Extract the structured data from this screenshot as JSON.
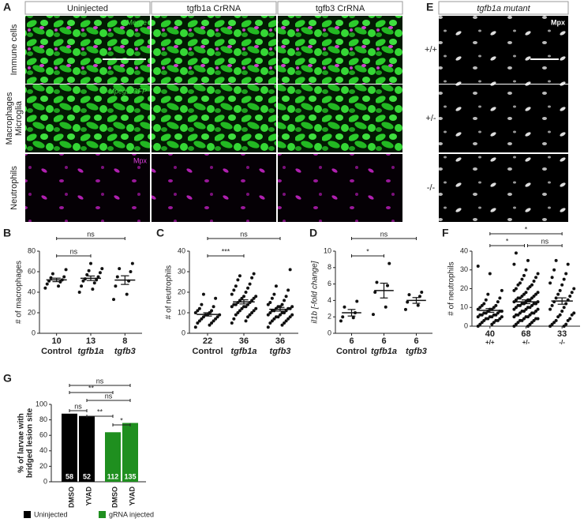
{
  "panel_A": {
    "label": "A",
    "columns": [
      "Uninjected",
      "tgfb1a CrRNA",
      "tgfb3 CrRNA"
    ],
    "rows": [
      [
        "Immune cells"
      ],
      [
        "Macrophages",
        "Microglia"
      ],
      [
        "Neutrophils"
      ]
    ],
    "channels": [
      "Merge",
      "Mpeg1:GFP",
      "Mpx"
    ]
  },
  "panel_E": {
    "label": "E",
    "title": "tgfb1a mutant",
    "rows": [
      "+/+",
      "+/-",
      "-/-"
    ],
    "channel": "Mpx"
  },
  "chart_data": [
    {
      "type": "dotplot",
      "label": "B",
      "ylabel": "# of macrophages",
      "categories": [
        "Control",
        "tgfb1a",
        "tgfb3"
      ],
      "n": [
        10,
        13,
        8
      ],
      "points": [
        [
          44,
          46,
          48,
          50,
          51,
          52,
          54,
          55,
          58,
          62
        ],
        [
          40,
          43,
          46,
          49,
          51,
          52,
          53,
          55,
          57,
          59,
          61,
          63,
          68
        ],
        [
          33,
          38,
          46,
          51,
          55,
          60,
          63,
          68
        ]
      ],
      "mean": [
        52.0,
        53.6,
        51.8
      ],
      "sem": [
        1.7,
        2.2,
        4.2
      ],
      "ylim": [
        0,
        80
      ],
      "yticks": [
        0,
        20,
        40,
        60,
        80
      ],
      "comparisons": [
        {
          "from": 0,
          "to": 2,
          "label": "ns"
        },
        {
          "from": 0,
          "to": 1,
          "label": "ns"
        }
      ]
    },
    {
      "type": "dotplot",
      "label": "C",
      "ylabel": "# of neutrophils",
      "categories": [
        "Control",
        "tgfb1a",
        "tgfb3"
      ],
      "n": [
        22,
        36,
        36
      ],
      "points": [
        [
          3,
          4,
          5,
          5,
          6,
          6,
          7,
          7,
          8,
          8,
          9,
          9,
          9,
          10,
          10,
          11,
          11,
          12,
          13,
          14,
          17,
          19
        ],
        [
          5,
          6,
          7,
          8,
          9,
          9,
          10,
          10,
          11,
          11,
          12,
          12,
          13,
          13,
          13,
          14,
          14,
          14,
          15,
          15,
          16,
          16,
          17,
          17,
          18,
          18,
          19,
          20,
          21,
          22,
          23,
          24,
          26,
          27,
          28,
          29
        ],
        [
          3,
          4,
          5,
          5,
          6,
          6,
          7,
          7,
          8,
          8,
          8,
          9,
          9,
          9,
          10,
          10,
          10,
          11,
          11,
          11,
          12,
          12,
          12,
          13,
          13,
          13,
          14,
          14,
          15,
          16,
          17,
          18,
          19,
          21,
          23,
          31
        ]
      ],
      "mean": [
        9.2,
        15.3,
        11.7
      ],
      "sem": [
        0.8,
        1.0,
        0.9
      ],
      "ylim": [
        0,
        40
      ],
      "yticks": [
        0,
        10,
        20,
        30,
        40
      ],
      "comparisons": [
        {
          "from": 0,
          "to": 2,
          "label": "ns"
        },
        {
          "from": 0,
          "to": 1,
          "label": "***"
        }
      ]
    },
    {
      "type": "dotplot",
      "label": "D",
      "ylabel": "il1b [-fold change]",
      "categories": [
        "Control",
        "tgfb1a",
        "tgfb3"
      ],
      "n": [
        6,
        6,
        6
      ],
      "points": [
        [
          1.5,
          1.9,
          2.0,
          2.5,
          3.2,
          3.9
        ],
        [
          2.3,
          3.2,
          5.0,
          5.8,
          6.2,
          8.5
        ],
        [
          2.9,
          3.4,
          3.8,
          4.5,
          4.7,
          5.0
        ]
      ],
      "mean": [
        2.5,
        5.2,
        4.0
      ],
      "sem": [
        0.4,
        0.9,
        0.35
      ],
      "ylim": [
        0,
        10
      ],
      "yticks": [
        0,
        2,
        4,
        6,
        8,
        10
      ],
      "comparisons": [
        {
          "from": 0,
          "to": 2,
          "label": "ns"
        },
        {
          "from": 0,
          "to": 1,
          "label": "*"
        }
      ]
    },
    {
      "type": "dotplot",
      "label": "F",
      "ylabel": "# of neutrophils",
      "categories": [
        "+/+",
        "+/-",
        "-/-"
      ],
      "n": [
        40,
        68,
        33
      ],
      "points": [
        [
          0,
          1,
          1,
          2,
          2,
          3,
          3,
          3,
          4,
          4,
          4,
          5,
          5,
          5,
          5,
          6,
          6,
          6,
          6,
          7,
          7,
          7,
          8,
          8,
          8,
          9,
          9,
          9,
          10,
          10,
          11,
          11,
          12,
          13,
          14,
          15,
          17,
          19,
          28,
          32
        ],
        [
          0,
          0,
          1,
          1,
          2,
          2,
          3,
          3,
          3,
          4,
          4,
          4,
          5,
          5,
          5,
          6,
          6,
          6,
          7,
          7,
          7,
          8,
          8,
          8,
          9,
          9,
          9,
          10,
          10,
          10,
          11,
          11,
          11,
          12,
          12,
          12,
          12,
          13,
          13,
          13,
          14,
          14,
          14,
          15,
          15,
          15,
          16,
          16,
          17,
          17,
          18,
          18,
          19,
          20,
          20,
          21,
          22,
          22,
          23,
          24,
          25,
          26,
          27,
          28,
          30,
          33,
          35,
          39
        ],
        [
          0,
          0,
          1,
          1,
          2,
          3,
          3,
          4,
          5,
          6,
          6,
          7,
          8,
          9,
          10,
          11,
          12,
          13,
          14,
          15,
          16,
          17,
          18,
          19,
          20,
          22,
          23,
          25,
          26,
          28,
          30,
          33,
          35
        ]
      ],
      "mean": [
        8.4,
        13.0,
        13.4
      ],
      "sem": [
        1.0,
        1.0,
        1.7
      ],
      "ylim": [
        0,
        40
      ],
      "yticks": [
        0,
        10,
        20,
        30,
        40
      ],
      "comparisons": [
        {
          "from": 0,
          "to": 2,
          "label": "*"
        },
        {
          "from": 0,
          "to": 1,
          "label": "*"
        },
        {
          "from": 1,
          "to": 2,
          "label": "ns"
        }
      ]
    },
    {
      "type": "bar",
      "label": "G",
      "ylabel": [
        "% of larvae with",
        "bridged lesion site"
      ],
      "categories": [
        "DMSO",
        "YVAD",
        "DMSO",
        "YVAD"
      ],
      "values": [
        88,
        85,
        64,
        76
      ],
      "n": [
        58,
        52,
        112,
        135
      ],
      "groups": [
        0,
        0,
        1,
        1
      ],
      "legend": [
        {
          "name": "Uninjected",
          "color": "#000000"
        },
        {
          "name": "gRNA injected",
          "color": "#1f8f1f"
        }
      ],
      "ylim": [
        0,
        100
      ],
      "yticks": [
        0,
        20,
        40,
        60,
        80,
        100
      ],
      "comparisons": [
        {
          "from": 0,
          "to": 3,
          "label": "ns"
        },
        {
          "from": 0,
          "to": 2,
          "label": "**"
        },
        {
          "from": 1,
          "to": 3,
          "label": "ns"
        },
        {
          "from": 0,
          "to": 1,
          "label": "ns"
        },
        {
          "from": 1,
          "to": 2,
          "label": "**"
        },
        {
          "from": 2,
          "to": 3,
          "label": "*"
        }
      ]
    }
  ]
}
